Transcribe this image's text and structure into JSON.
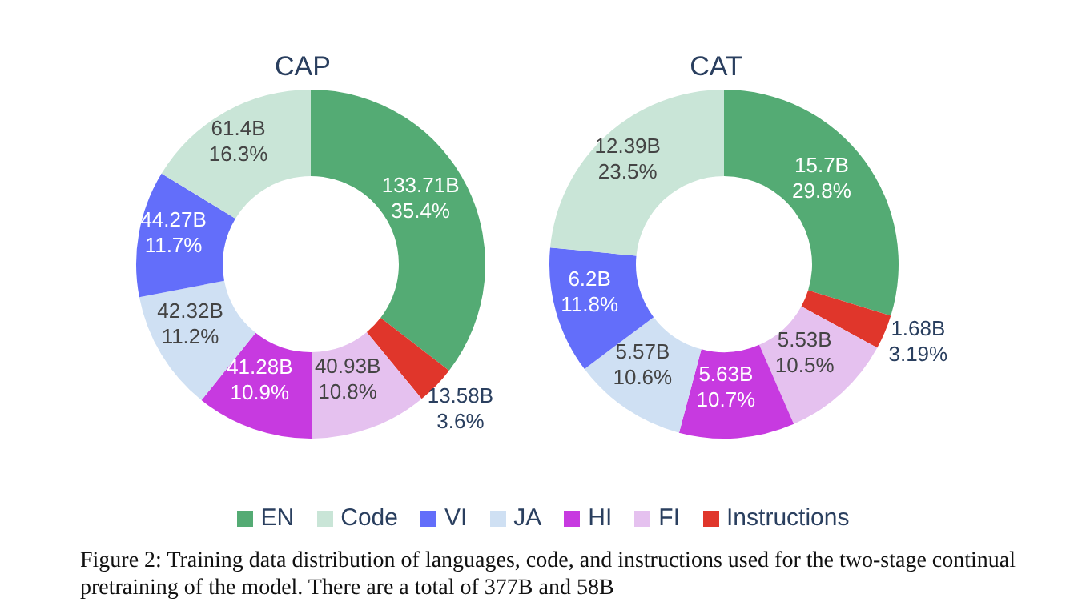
{
  "chart_data": [
    {
      "type": "donut",
      "title": "CAP",
      "categories": [
        "EN",
        "Code",
        "VI",
        "JA",
        "HI",
        "FI",
        "Instructions"
      ],
      "values": [
        35.4,
        16.3,
        11.7,
        11.2,
        10.9,
        10.8,
        3.6
      ],
      "colors": [
        "#54ab74",
        "#c9e5d7",
        "#636efa",
        "#cfe0f3",
        "#c73ae0",
        "#e5c1ef",
        "#e0362b"
      ],
      "value_labels": [
        "133.71B\n35.4%",
        "61.4B\n16.3%",
        "44.27B\n11.7%",
        "42.32B\n11.2%",
        "41.28B\n10.9%",
        "40.93B\n10.8%",
        "13.58B\n3.6%"
      ],
      "legend": "bottom",
      "annotations": [
        "Figure 2: Training data distribution of languages, code, and instructions used for the two-stage continual pretraining of the model. There are a total of 377B and 58B"
      ]
    },
    {
      "type": "donut",
      "title": "CAT",
      "categories": [
        null,
        null,
        null,
        null,
        null,
        null,
        null
      ],
      "values": [
        29.8,
        23.5,
        11.8,
        10.6,
        10.7,
        10.5,
        3.19
      ],
      "colors": [
        "#54ab74",
        "#c9e5d7",
        "#636efa",
        "#cfe0f3",
        "#c73ae0",
        "#e5c1ef",
        "#e0362b"
      ],
      "value_labels": [
        "15.7B\n29.8%",
        "12.39B\n23.5%",
        "6.2B\n11.8%",
        "5.57B\n10.6%",
        "5.63B\n10.7%",
        "5.53B\n10.5%",
        "1.68B\n3.19%"
      ]
    }
  ]
}
